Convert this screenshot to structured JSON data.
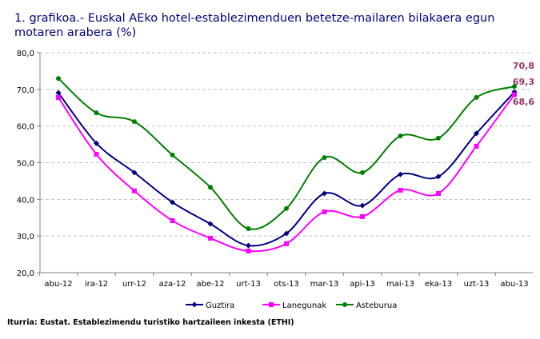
{
  "chart_data": {
    "type": "line",
    "title": "1. grafikoa.- Euskal AEko hotel-establezimenduen betetze-mailaren bilakaera egun motaren arabera (%)",
    "xlabel": "",
    "ylabel": "",
    "ylim": [
      20,
      80
    ],
    "yticks": [
      "20,0",
      "30,0",
      "40,0",
      "50,0",
      "60,0",
      "70,0",
      "80,0"
    ],
    "grid": true,
    "legend": "bottom",
    "categories": [
      "abu-12",
      "ira-12",
      "urr-12",
      "aza-12",
      "abe-12",
      "urt-13",
      "ots-13",
      "mar-13",
      "api-13",
      "mai-13",
      "eka-13",
      "uzt-13",
      "abu-13"
    ],
    "series": [
      {
        "name": "Guztira",
        "color": "#000080",
        "marker": "diamond",
        "values": [
          69.1,
          55.3,
          47.3,
          39.2,
          33.3,
          27.4,
          30.7,
          41.6,
          38.3,
          46.8,
          46.2,
          58.0,
          69.3
        ]
      },
      {
        "name": "Lanegunak",
        "color": "#FF00FF",
        "marker": "square",
        "values": [
          67.8,
          52.3,
          42.3,
          34.2,
          29.4,
          25.9,
          27.9,
          36.6,
          35.3,
          42.5,
          41.6,
          54.5,
          68.6
        ]
      },
      {
        "name": "Asteburua",
        "color": "#008000",
        "marker": "circle",
        "values": [
          73.0,
          63.6,
          61.2,
          52.1,
          43.3,
          32.0,
          37.5,
          51.4,
          47.3,
          57.3,
          56.7,
          67.8,
          70.8
        ]
      }
    ],
    "annotations": [
      "70,8",
      "69,3",
      "68,6"
    ],
    "annotation_color": "#993366"
  },
  "source": "Iturria: Eustat. Establezimendu turistiko hartzaileen inkesta (ETHI)"
}
